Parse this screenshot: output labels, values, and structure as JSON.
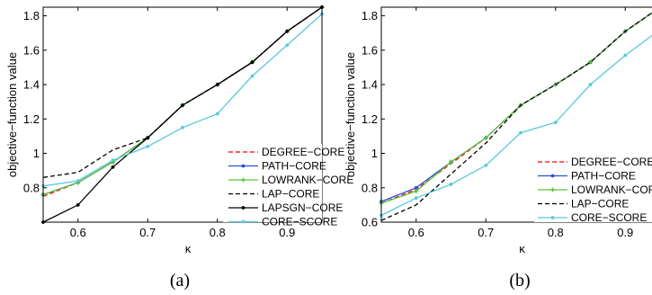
{
  "chart_data": [
    {
      "type": "line",
      "panel_label": "(a)",
      "xlabel": "κ",
      "ylabel": "objective−function value",
      "xlim": [
        0.55,
        0.95
      ],
      "ylim": [
        0.6,
        1.85
      ],
      "xticks": [
        "0.6",
        "0.7",
        "0.8",
        "0.9"
      ],
      "yticks": [
        "0.8",
        "1",
        "1.2",
        "1.4",
        "1.6",
        "1.8"
      ],
      "x": [
        0.55,
        0.6,
        0.65,
        0.7,
        0.75,
        0.8,
        0.85,
        0.9,
        0.95
      ],
      "legend_position": "lower-right",
      "series": [
        {
          "name": "DEGREE−CORE",
          "color": "#ff0000",
          "dash": "dashed",
          "marker": "none",
          "values": [
            0.75,
            0.83,
            0.95,
            1.09,
            1.28,
            1.4,
            1.53,
            1.71,
            1.85
          ]
        },
        {
          "name": "PATH−CORE",
          "color": "#2b4fd8",
          "dash": "solid",
          "marker": "dot",
          "values": [
            0.76,
            0.83,
            0.95,
            1.09,
            1.28,
            1.4,
            1.53,
            1.71,
            1.85
          ]
        },
        {
          "name": "LOWRANK−CORE",
          "color": "#5cc43b",
          "dash": "solid",
          "marker": "star",
          "values": [
            0.76,
            0.83,
            0.95,
            1.09,
            1.28,
            1.4,
            1.53,
            1.71,
            1.85
          ]
        },
        {
          "name": "LAP−CORE",
          "color": "#000000",
          "dash": "dashed",
          "marker": "none",
          "values": [
            0.86,
            0.89,
            1.02,
            1.09,
            1.28,
            1.4,
            1.53,
            1.71,
            1.85
          ]
        },
        {
          "name": "LAPSGN−CORE",
          "color": "#000000",
          "dash": "solid",
          "marker": "dot",
          "values": [
            0.6,
            0.7,
            0.92,
            1.09,
            1.28,
            1.4,
            1.53,
            1.71,
            1.85
          ]
        },
        {
          "name": "CORE−SCORE",
          "color": "#5bc8d8",
          "dash": "solid",
          "marker": "dot",
          "values": [
            0.81,
            0.84,
            0.96,
            1.04,
            1.15,
            1.23,
            1.45,
            1.63,
            1.81
          ]
        }
      ]
    },
    {
      "type": "line",
      "panel_label": "(b)",
      "xlabel": "κ",
      "ylabel": "objective−function value",
      "xlim": [
        0.55,
        0.95
      ],
      "ylim": [
        0.6,
        1.85
      ],
      "xticks": [
        "0.6",
        "0.7",
        "0.8",
        "0.9"
      ],
      "yticks": [
        "0.6",
        "0.8",
        "1",
        "1.2",
        "1.4",
        "1.6",
        "1.8"
      ],
      "x": [
        0.55,
        0.6,
        0.65,
        0.7,
        0.75,
        0.8,
        0.85,
        0.9,
        0.95
      ],
      "legend_position": "lower-right",
      "series": [
        {
          "name": "DEGREE−CORE",
          "color": "#ff0000",
          "dash": "dashed",
          "marker": "none",
          "values": [
            0.71,
            0.79,
            0.94,
            1.09,
            1.28,
            1.4,
            1.53,
            1.71,
            1.85
          ]
        },
        {
          "name": "PATH−CORE",
          "color": "#2b4fd8",
          "dash": "solid",
          "marker": "dot",
          "values": [
            0.72,
            0.8,
            0.95,
            1.09,
            1.28,
            1.4,
            1.53,
            1.71,
            1.85
          ]
        },
        {
          "name": "LOWRANK−CORE",
          "color": "#5cc43b",
          "dash": "solid",
          "marker": "star",
          "values": [
            0.71,
            0.78,
            0.95,
            1.09,
            1.28,
            1.4,
            1.53,
            1.71,
            1.85
          ]
        },
        {
          "name": "LAP−CORE",
          "color": "#000000",
          "dash": "dashed",
          "marker": "none",
          "values": [
            0.61,
            0.7,
            0.88,
            1.06,
            1.28,
            1.4,
            1.53,
            1.71,
            1.85
          ]
        },
        {
          "name": "CORE−SCORE",
          "color": "#5bc8d8",
          "dash": "solid",
          "marker": "dot",
          "values": [
            0.64,
            0.74,
            0.82,
            0.93,
            1.12,
            1.18,
            1.4,
            1.57,
            1.72
          ]
        }
      ]
    }
  ]
}
